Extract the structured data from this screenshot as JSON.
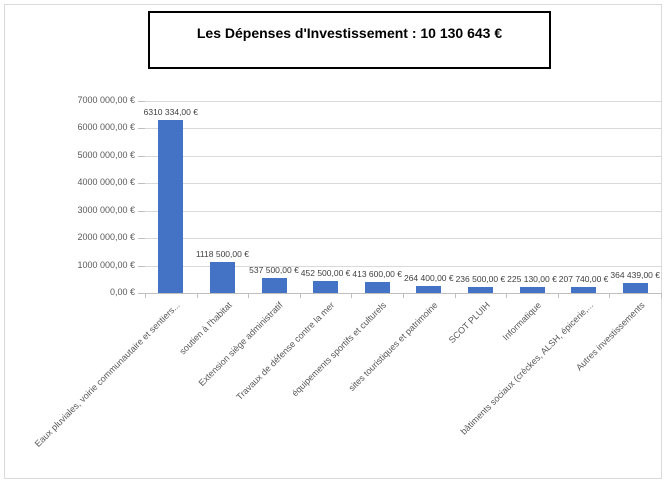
{
  "chart_data": {
    "type": "bar",
    "title": "Les Dépenses d'Investissement : 10 130 643 €",
    "categories": [
      "Eaux pluviales, voirie communautaire et sentiers...",
      "soutien à l'habitat",
      "Extension siège administratif",
      "Travaux de défense contre la mer",
      "équipements sportifs et culturels",
      "sites touristiques et patrimoine",
      "SCOT PLUIH",
      "Informatique",
      "bâtiments sociaux (crèckes, ALSH, épicerie,...",
      "Autres investissements"
    ],
    "values": [
      6310334,
      1118500,
      537500,
      452500,
      413600,
      264400,
      236500,
      225130,
      207740,
      364439
    ],
    "data_labels": [
      "6310 334,00 €",
      "1118 500,00 €",
      "537 500,00 €",
      "452 500,00 €",
      "413 600,00 €",
      "264 400,00 €",
      "236 500,00 €",
      "225 130,00 €",
      "207 740,00 €",
      "364 439,00 €"
    ],
    "y_tick_labels": [
      "7000 000,00 €",
      "6000 000,00 €",
      "5000 000,00 €",
      "4000 000,00 €",
      "3000 000,00 €",
      "2000 000,00 €",
      "1000 000,00 €",
      "0,00 €"
    ],
    "ylim": [
      0,
      7000000
    ],
    "y_major_step": 1000000,
    "grid": true,
    "legend": "none",
    "xlabel": "",
    "ylabel": ""
  },
  "colors": {
    "bar_fill": "#4472C4",
    "gridline": "#D9D9D9",
    "axis_line": "#BFBFBF",
    "axis_text": "#595959",
    "data_label_text": "#404040",
    "title_text": "#000000",
    "title_border": "#000000",
    "frame_border": "#D9D9D9"
  }
}
